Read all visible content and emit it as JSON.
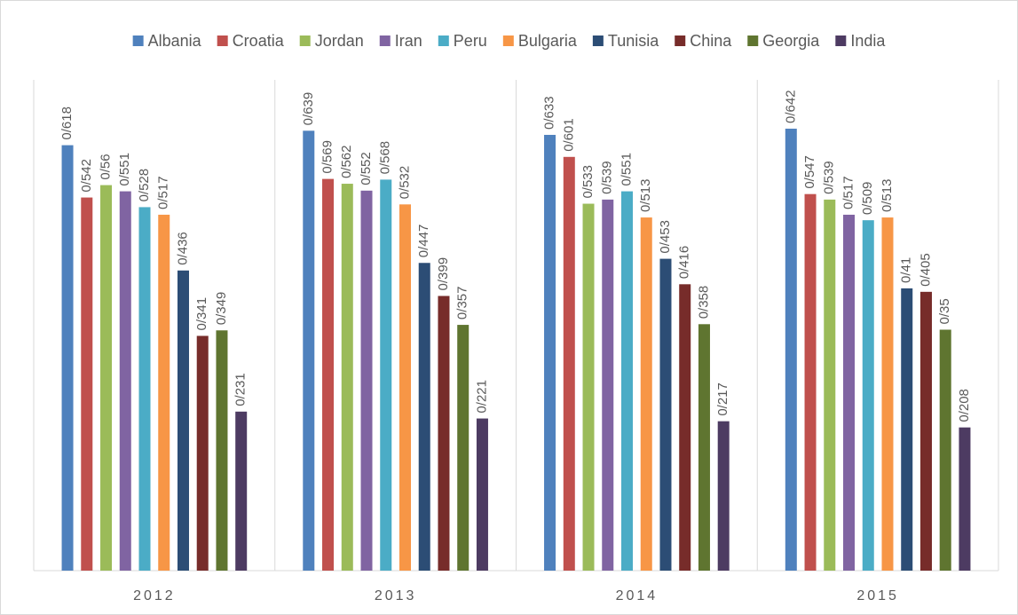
{
  "chart_data": {
    "type": "bar",
    "categories": [
      "2012",
      "2013",
      "2014",
      "2015"
    ],
    "ylim": [
      0,
      0.7
    ],
    "legend": "top",
    "series": [
      {
        "name": "Albania",
        "color": "#4f81bd",
        "values": [
          0.618,
          0.639,
          0.633,
          0.642
        ],
        "value_labels": [
          "0/618",
          "0/639",
          "0/633",
          "0/642"
        ]
      },
      {
        "name": "Croatia",
        "color": "#c0504d",
        "values": [
          0.542,
          0.569,
          0.601,
          0.547
        ],
        "value_labels": [
          "0/542",
          "0/569",
          "0/601",
          "0/547"
        ]
      },
      {
        "name": "Jordan",
        "color": "#9bbb59",
        "values": [
          0.56,
          0.562,
          0.533,
          0.539
        ],
        "value_labels": [
          "0/56",
          "0/562",
          "0/533",
          "0/539"
        ]
      },
      {
        "name": "Iran",
        "color": "#8064a2",
        "values": [
          0.551,
          0.552,
          0.539,
          0.517
        ],
        "value_labels": [
          "0/551",
          "0/552",
          "0/539",
          "0/517"
        ]
      },
      {
        "name": "Peru",
        "color": "#4bacc6",
        "values": [
          0.528,
          0.568,
          0.551,
          0.509
        ],
        "value_labels": [
          "0/528",
          "0/568",
          "0/551",
          "0/509"
        ]
      },
      {
        "name": "Bulgaria",
        "color": "#f79646",
        "values": [
          0.517,
          0.532,
          0.513,
          0.513
        ],
        "value_labels": [
          "0/517",
          "0/532",
          "0/513",
          "0/513"
        ]
      },
      {
        "name": "Tunisia",
        "color": "#2c4d75",
        "values": [
          0.436,
          0.447,
          0.453,
          0.41
        ],
        "value_labels": [
          "0/436",
          "0/447",
          "0/453",
          "0/41"
        ]
      },
      {
        "name": "China",
        "color": "#772c2a",
        "values": [
          0.341,
          0.399,
          0.416,
          0.405
        ],
        "value_labels": [
          "0/341",
          "0/399",
          "0/416",
          "0/405"
        ]
      },
      {
        "name": "Georgia",
        "color": "#5f7530",
        "values": [
          0.349,
          0.357,
          0.358,
          0.35
        ],
        "value_labels": [
          "0/349",
          "0/357",
          "0/358",
          "0/35"
        ]
      },
      {
        "name": "India",
        "color": "#4d3b62",
        "values": [
          0.231,
          0.221,
          0.217,
          0.208
        ],
        "value_labels": [
          "0/231",
          "0/221",
          "0/217",
          "0/208"
        ]
      }
    ]
  }
}
